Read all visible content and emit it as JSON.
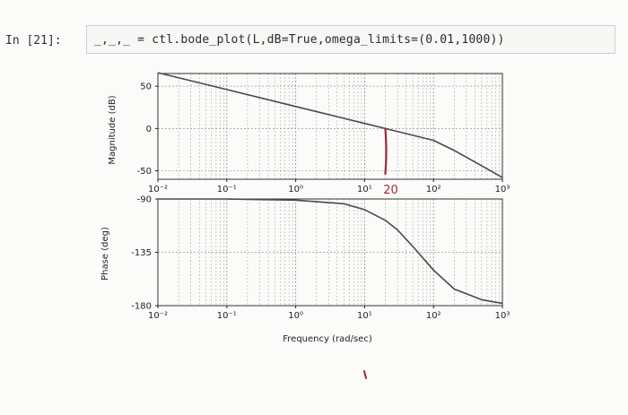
{
  "cell": {
    "prompt": "In [21]:",
    "code": "_,_,_ = ctl.bode_plot(L,dB=True,omega_limits=(0.01,1000))"
  },
  "chart_data": [
    {
      "type": "line",
      "xscale": "log",
      "xlim": [
        0.01,
        1000
      ],
      "ylim": [
        -60,
        65
      ],
      "ylabel": "Magnitude (dB)",
      "xlabel": "",
      "grid": true,
      "yticks": [
        50,
        0,
        -50
      ],
      "xtick_labels": [
        "10⁻²",
        "10⁻¹",
        "10⁰",
        "10¹",
        "10²",
        "10³"
      ],
      "x": [
        0.01,
        0.1,
        1,
        10,
        20,
        50,
        100,
        200,
        500,
        1000
      ],
      "y": [
        66,
        46,
        26,
        6,
        0,
        -8,
        -14,
        -26,
        -44,
        -58
      ]
    },
    {
      "type": "line",
      "xscale": "log",
      "xlim": [
        0.01,
        1000
      ],
      "ylim": [
        -180,
        -90
      ],
      "ylabel": "Phase (deg)",
      "xlabel": "Frequency (rad/sec)",
      "grid": true,
      "yticks": [
        -90,
        -135,
        -180
      ],
      "xtick_labels": [
        "10⁻²",
        "10⁻¹",
        "10⁰",
        "10¹",
        "10²",
        "10³"
      ],
      "x": [
        0.01,
        0.1,
        1,
        5,
        10,
        20,
        30,
        50,
        100,
        200,
        500,
        1000
      ],
      "y": [
        -90,
        -90,
        -91,
        -94,
        -99,
        -108,
        -116,
        -130,
        -150,
        -166,
        -175,
        -178
      ]
    }
  ],
  "annotation": {
    "text": "20",
    "x": 20,
    "y_from": 0,
    "y_to": -60
  },
  "colors": {
    "curve": "#4a4a4a",
    "annotation": "#9e2a3a",
    "grid": "#9a9a9a"
  }
}
